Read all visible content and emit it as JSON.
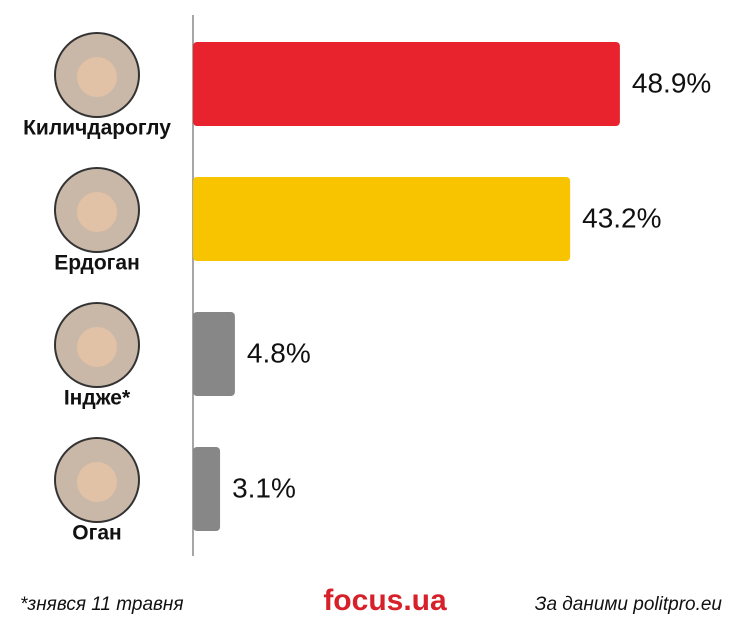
{
  "chart_data": {
    "type": "bar",
    "orientation": "horizontal",
    "categories": [
      "Киличдароглу",
      "Ердоган",
      "Індже*",
      "Оган"
    ],
    "values": [
      48.9,
      43.2,
      4.8,
      3.1
    ],
    "value_labels": [
      "48.9%",
      "43.2%",
      "4.8%",
      "3.1%"
    ],
    "colors": [
      "#e8232e",
      "#f8c400",
      "#878787",
      "#878787"
    ],
    "footnote": "*знявся 11 травня",
    "brand": "focus.ua",
    "source": "За даними politpro.eu"
  }
}
